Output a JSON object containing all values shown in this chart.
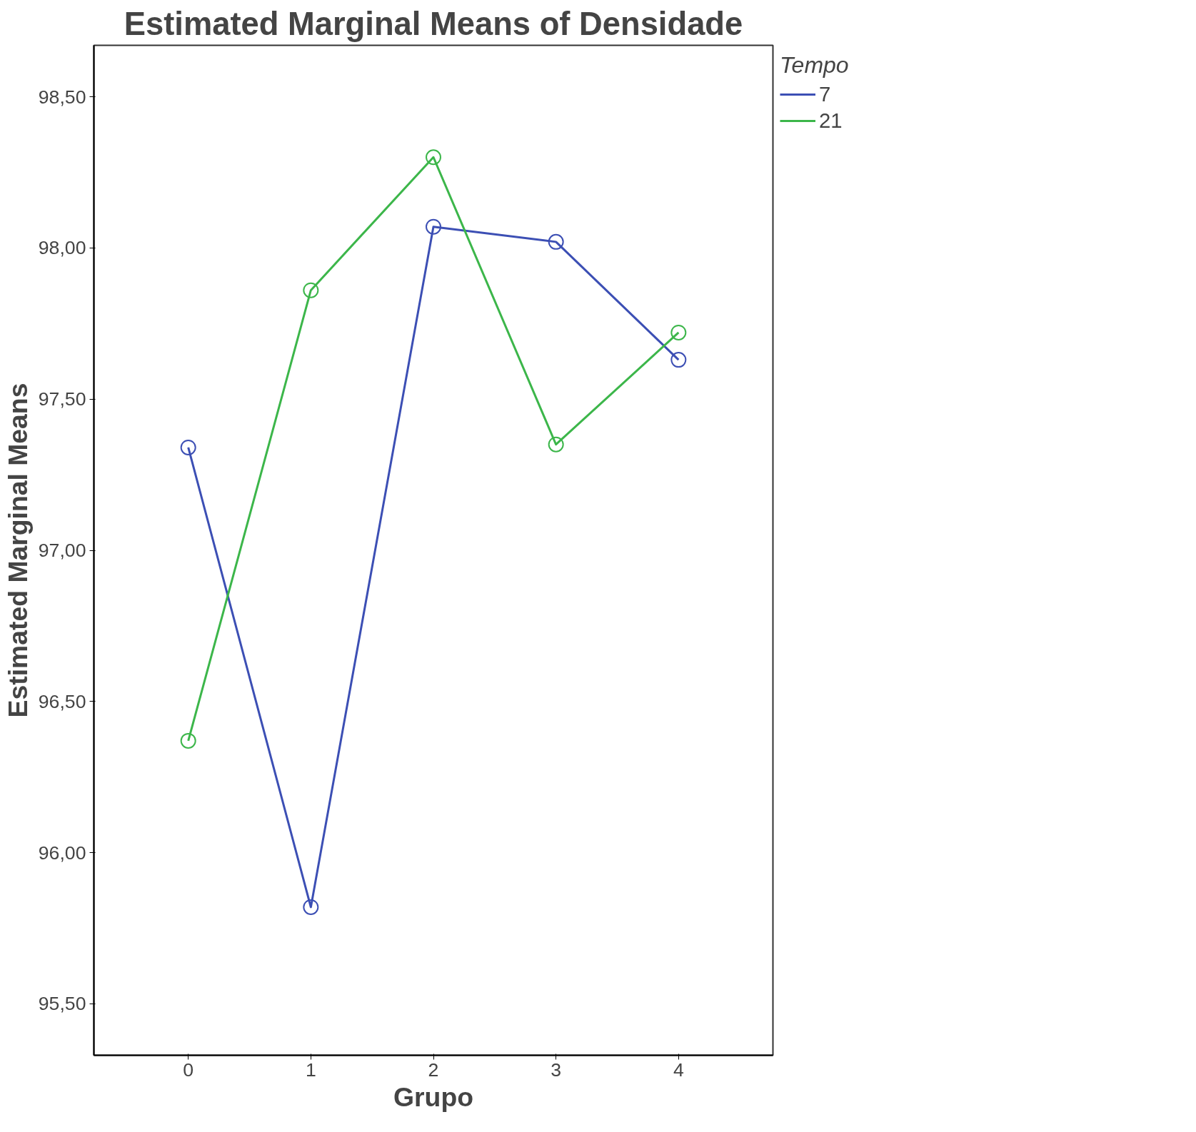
{
  "chart_data": {
    "type": "line",
    "title": "Estimated Marginal Means of Densidade",
    "xlabel": "Grupo",
    "ylabel": "Estimated Marginal Means",
    "legend_title": "Tempo",
    "x": [
      0,
      1,
      2,
      3,
      4
    ],
    "series": [
      {
        "name": "7",
        "color": "#3c4fb4",
        "values": [
          97.34,
          95.82,
          98.07,
          98.02,
          97.63
        ]
      },
      {
        "name": "21",
        "color": "#3cb64a",
        "values": [
          96.37,
          97.86,
          98.3,
          97.35,
          97.72
        ]
      }
    ],
    "xlim": [
      -0.77,
      4.77
    ],
    "ylim": [
      95.33,
      98.67
    ],
    "xticks": [
      0,
      1,
      2,
      3,
      4
    ],
    "yticks": [
      {
        "value": 95.5,
        "label": "95,50"
      },
      {
        "value": 96,
        "label": "96,00"
      },
      {
        "value": 96.5,
        "label": "96,50"
      },
      {
        "value": 97,
        "label": "97,00"
      },
      {
        "value": 97.5,
        "label": "97,50"
      },
      {
        "value": 98,
        "label": "98,00"
      },
      {
        "value": 98.5,
        "label": "98,50"
      }
    ],
    "grid": false,
    "legend": "top right",
    "marker": "circle",
    "line_style": "solid"
  }
}
